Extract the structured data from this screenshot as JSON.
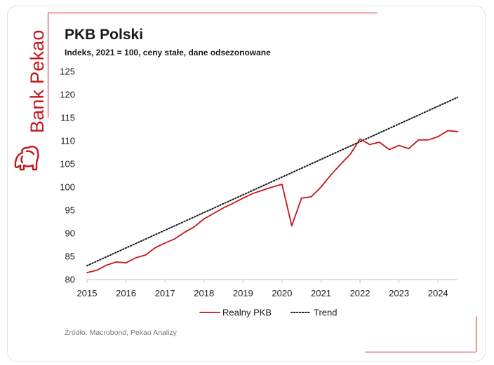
{
  "brand": {
    "name": "Bank Pekao",
    "accent_color": "#d51c29"
  },
  "chart_data": {
    "type": "line",
    "title": "PKB Polski",
    "subtitle": "Indeks, 2021 = 100, ceny stałe, dane odsezonowane",
    "xlabel": "",
    "ylabel": "",
    "xlim": [
      2015,
      2024.5
    ],
    "ylim": [
      80,
      125
    ],
    "yticks": [
      80,
      85,
      90,
      95,
      100,
      105,
      110,
      115,
      120,
      125
    ],
    "ytick_labels": [
      "80",
      "85",
      "90",
      "95",
      "100",
      "105",
      "110",
      "115",
      "120",
      "125"
    ],
    "xticks": [
      2015,
      2016,
      2017,
      2018,
      2019,
      2020,
      2021,
      2022,
      2023,
      2024
    ],
    "xtick_labels": [
      "2015",
      "2016",
      "2017",
      "2018",
      "2019",
      "2020",
      "2021",
      "2022",
      "2023",
      "2024"
    ],
    "grid": false,
    "legend_position": "bottom",
    "series": [
      {
        "name": "Realny PKB",
        "color": "#c4161c",
        "style": "solid",
        "x": [
          2015.0,
          2015.25,
          2015.5,
          2015.75,
          2016.0,
          2016.25,
          2016.5,
          2016.75,
          2017.0,
          2017.25,
          2017.5,
          2017.75,
          2018.0,
          2018.25,
          2018.5,
          2018.75,
          2019.0,
          2019.25,
          2019.5,
          2019.75,
          2020.0,
          2020.25,
          2020.5,
          2020.75,
          2021.0,
          2021.25,
          2021.5,
          2021.75,
          2022.0,
          2022.25,
          2022.5,
          2022.75,
          2023.0,
          2023.25,
          2023.5,
          2023.75,
          2024.0,
          2024.25,
          2024.5
        ],
        "values": [
          81.5,
          82.0,
          83.1,
          83.8,
          83.6,
          84.7,
          85.3,
          86.9,
          87.9,
          88.8,
          90.2,
          91.4,
          93.1,
          94.3,
          95.5,
          96.5,
          97.6,
          98.6,
          99.3,
          100.0,
          100.6,
          91.6,
          97.6,
          97.9,
          100.0,
          102.6,
          104.9,
          107.1,
          110.4,
          109.2,
          109.7,
          108.1,
          109.0,
          108.3,
          110.2,
          110.2,
          110.9,
          112.2,
          112.0
        ]
      },
      {
        "name": "Trend",
        "color": "#1a1a1a",
        "style": "dotted",
        "x": [
          2015.0,
          2024.5
        ],
        "values": [
          83.0,
          119.4
        ]
      }
    ]
  },
  "source": "Źródło: Macrobond, Pekao Analizy"
}
